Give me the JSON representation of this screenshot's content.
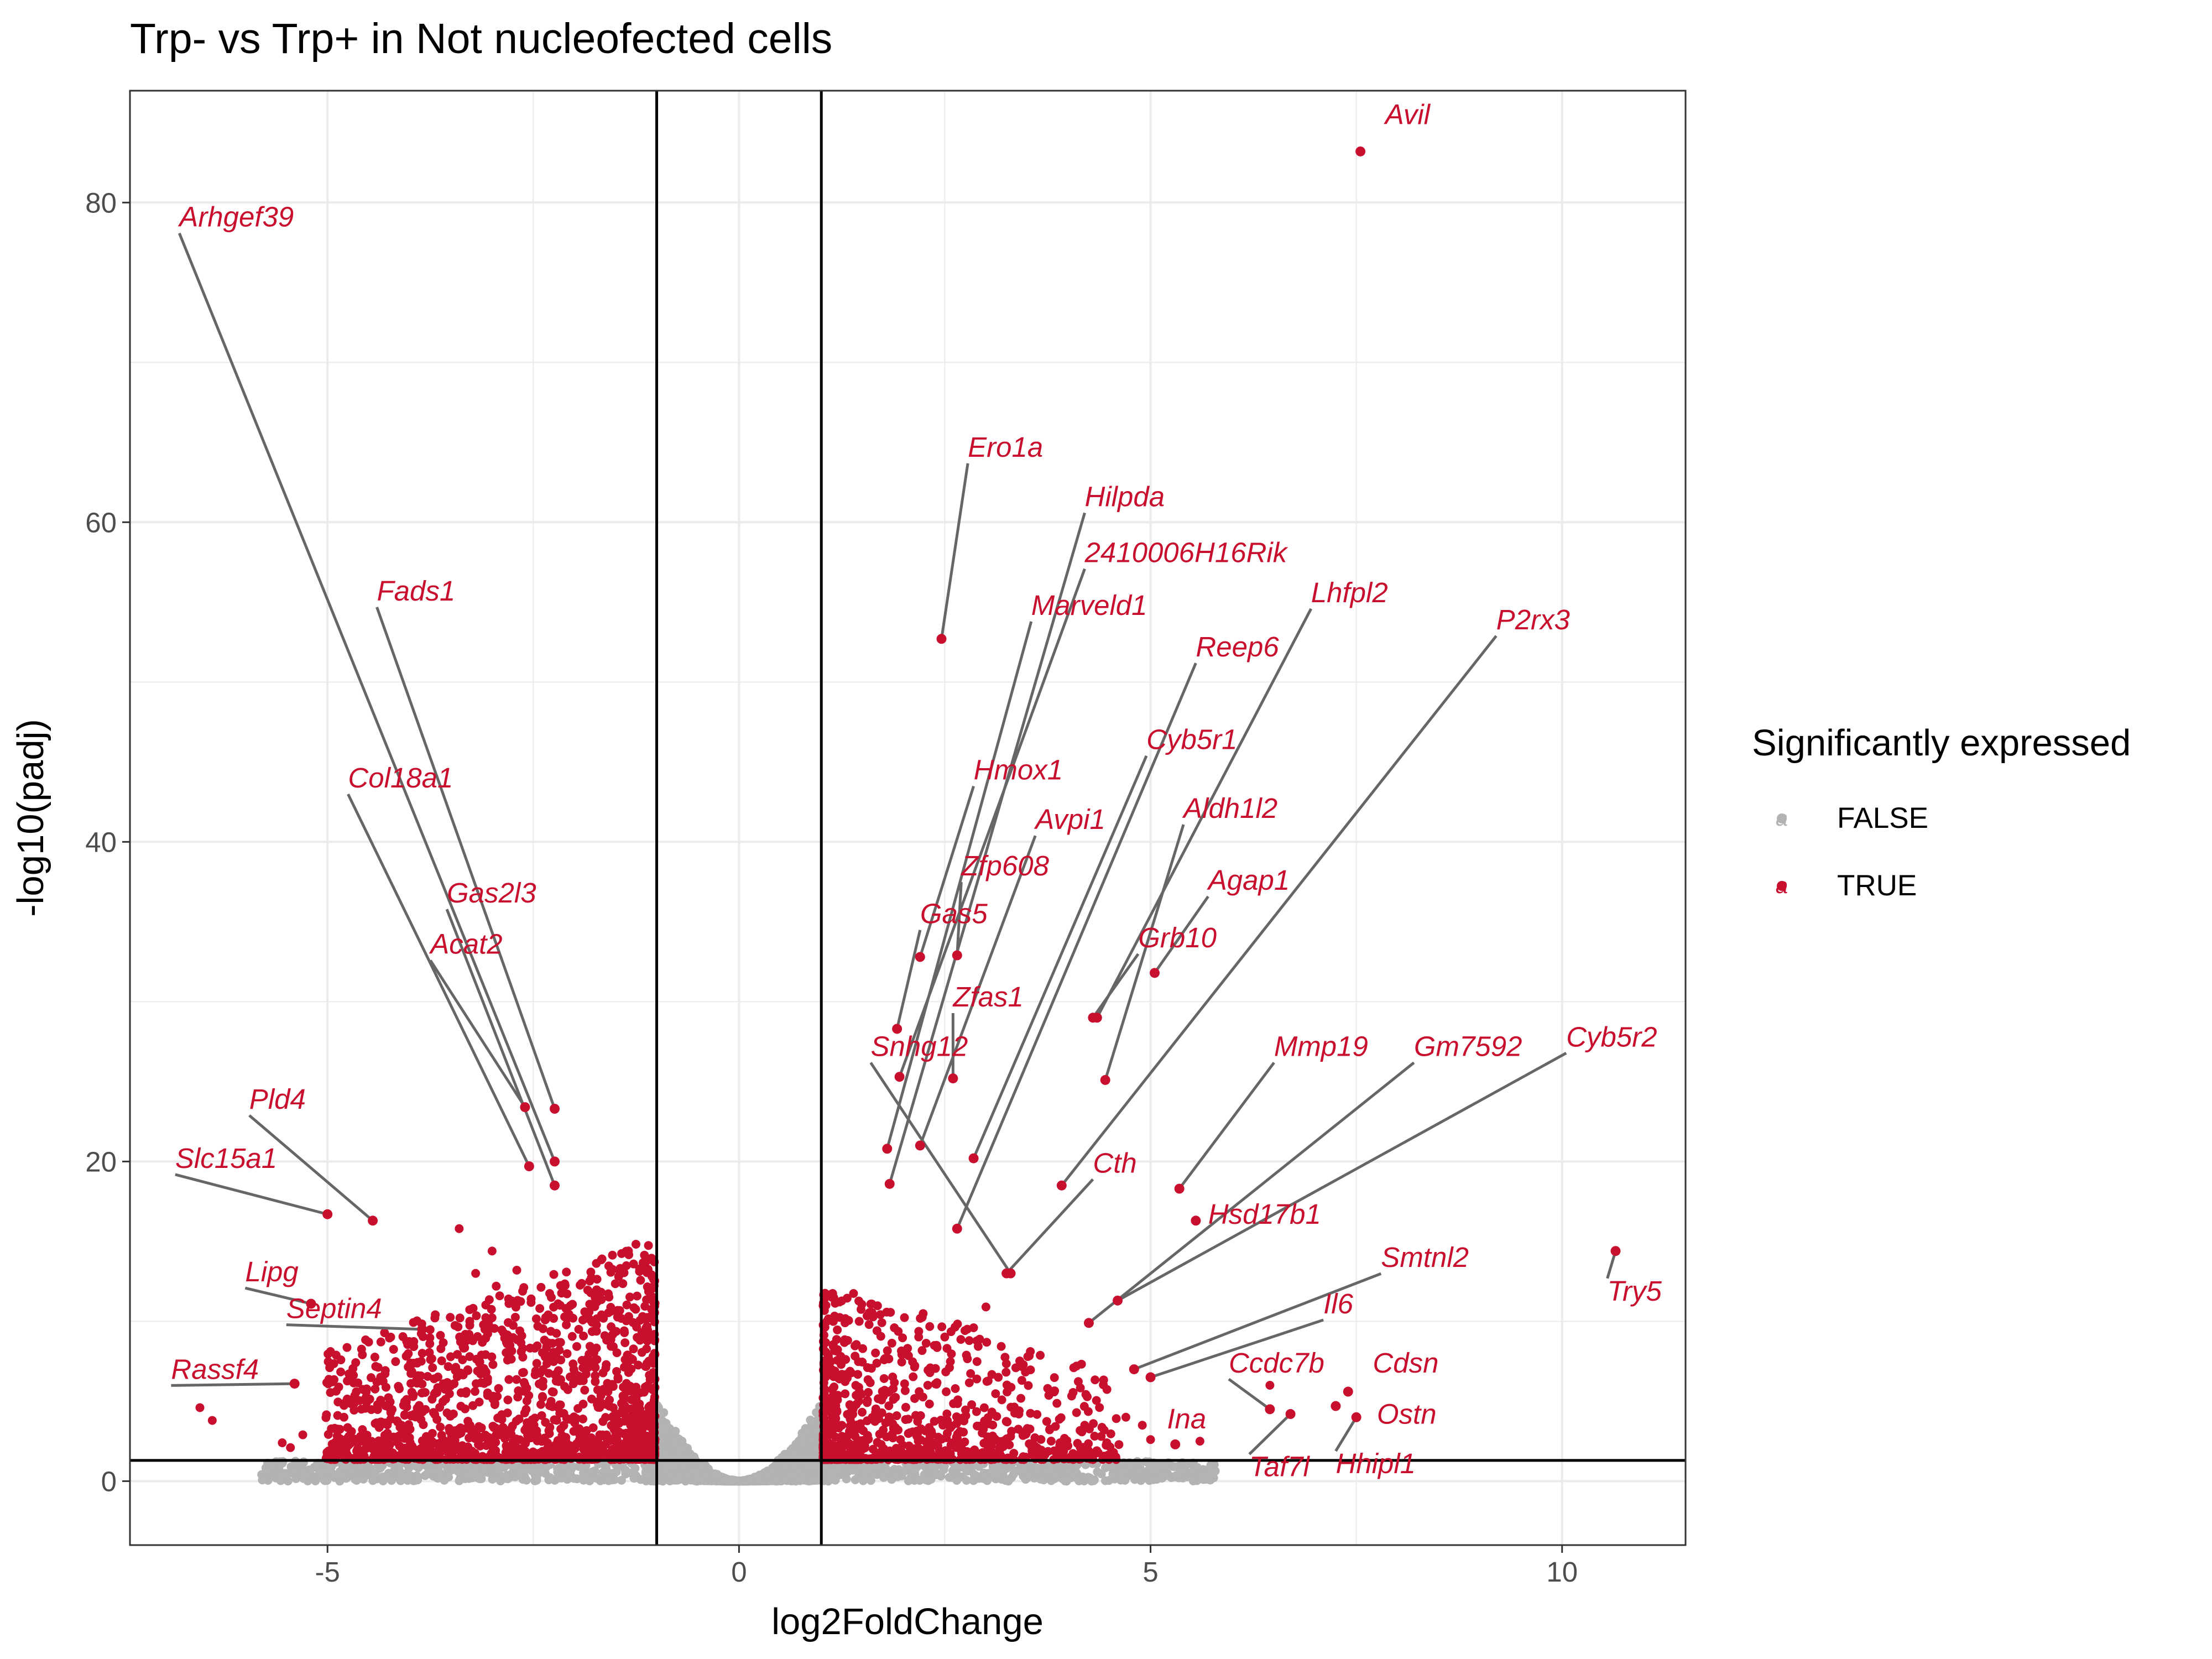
{
  "chart_data": {
    "type": "scatter",
    "title": "Trp- vs Trp+ in Not nucleofected cells",
    "xlabel": "log2FoldChange",
    "ylabel": "-log10(padj)",
    "xlim": [
      -7.4,
      11.5
    ],
    "ylim": [
      -4,
      87
    ],
    "x_ticks": [
      -5,
      0,
      5,
      10
    ],
    "y_ticks": [
      0,
      20,
      40,
      60,
      80
    ],
    "grid": true,
    "fc_threshold_lines": [
      -1,
      1
    ],
    "padj_threshold_line": 1.3,
    "legend": {
      "title": "Significantly expressed",
      "position": "right",
      "entries": [
        {
          "label": "FALSE",
          "color": "#b3b3b3",
          "glyph": "a"
        },
        {
          "label": "TRUE",
          "color": "#c8102e",
          "glyph": "a"
        }
      ]
    },
    "colors": {
      "significant": "#c8102e",
      "not_significant": "#b3b3b3",
      "connector": "#666666"
    },
    "labeled_genes": [
      {
        "gene": "Avil",
        "x": 7.55,
        "y": 83.2,
        "lx": 7.85,
        "ly": 84.9
      },
      {
        "gene": "Arhgef39",
        "x": -2.24,
        "y": 20.0,
        "lx": -6.8,
        "ly": 78.5
      },
      {
        "gene": "Fads1",
        "x": -2.24,
        "y": 23.3,
        "lx": -4.4,
        "ly": 55.1
      },
      {
        "gene": "Col18a1",
        "x": -2.55,
        "y": 19.7,
        "lx": -4.75,
        "ly": 43.4
      },
      {
        "gene": "Gas2l3",
        "x": -2.24,
        "y": 18.5,
        "lx": -3.55,
        "ly": 36.2
      },
      {
        "gene": "Acat2",
        "x": -2.6,
        "y": 23.4,
        "lx": -3.75,
        "ly": 33.0
      },
      {
        "gene": "Pld4",
        "x": -4.45,
        "y": 16.3,
        "lx": -5.95,
        "ly": 23.3
      },
      {
        "gene": "Slc15a1",
        "x": -5.0,
        "y": 16.7,
        "lx": -6.85,
        "ly": 19.6
      },
      {
        "gene": "Lipg",
        "x": -5.2,
        "y": 11.1,
        "lx": -6.0,
        "ly": 12.5
      },
      {
        "gene": "Septin4",
        "x": -3.85,
        "y": 9.5,
        "lx": -5.5,
        "ly": 10.2
      },
      {
        "gene": "Rassf4",
        "x": -5.4,
        "y": 6.1,
        "lx": -6.9,
        "ly": 6.4
      },
      {
        "gene": "Ero1a",
        "x": 2.46,
        "y": 52.7,
        "lx": 2.78,
        "ly": 64.1
      },
      {
        "gene": "Hilpda",
        "x": 1.83,
        "y": 18.6,
        "lx": 4.2,
        "ly": 61.0
      },
      {
        "gene": "2410006H16Rik",
        "x": 1.95,
        "y": 25.3,
        "lx": 4.2,
        "ly": 57.5
      },
      {
        "gene": "Lhfpl2",
        "x": 4.35,
        "y": 29.0,
        "lx": 6.95,
        "ly": 55.0
      },
      {
        "gene": "Marveld1",
        "x": 1.8,
        "y": 20.8,
        "lx": 3.55,
        "ly": 54.2
      },
      {
        "gene": "P2rx3",
        "x": 3.92,
        "y": 18.5,
        "lx": 9.2,
        "ly": 53.3
      },
      {
        "gene": "Reep6",
        "x": 2.65,
        "y": 15.8,
        "lx": 5.55,
        "ly": 51.6
      },
      {
        "gene": "Cyb5r1",
        "x": 2.85,
        "y": 20.2,
        "lx": 4.95,
        "ly": 45.8
      },
      {
        "gene": "Hmox1",
        "x": 2.2,
        "y": 32.8,
        "lx": 2.85,
        "ly": 43.9
      },
      {
        "gene": "Aldh1l2",
        "x": 4.45,
        "y": 25.1,
        "lx": 5.4,
        "ly": 41.5
      },
      {
        "gene": "Avpi1",
        "x": 2.2,
        "y": 21.0,
        "lx": 3.6,
        "ly": 40.8
      },
      {
        "gene": "Agap1",
        "x": 5.05,
        "y": 31.8,
        "lx": 5.7,
        "ly": 37.0
      },
      {
        "gene": "Zfp608",
        "x": 2.65,
        "y": 32.9,
        "lx": 2.7,
        "ly": 37.9
      },
      {
        "gene": "Gas5",
        "x": 1.92,
        "y": 28.3,
        "lx": 2.2,
        "ly": 34.9
      },
      {
        "gene": "Grb10",
        "x": 4.3,
        "y": 29.0,
        "lx": 4.85,
        "ly": 33.4
      },
      {
        "gene": "Zfas1",
        "x": 2.6,
        "y": 25.2,
        "lx": 2.6,
        "ly": 29.7
      },
      {
        "gene": "Snhg12",
        "x": 3.3,
        "y": 13.0,
        "lx": 1.6,
        "ly": 26.6
      },
      {
        "gene": "Mmp19",
        "x": 5.35,
        "y": 18.3,
        "lx": 6.5,
        "ly": 26.6
      },
      {
        "gene": "Gm7592",
        "x": 4.25,
        "y": 9.9,
        "lx": 8.2,
        "ly": 26.6
      },
      {
        "gene": "Cyb5r2",
        "x": 4.6,
        "y": 11.3,
        "lx": 10.05,
        "ly": 27.2
      },
      {
        "gene": "Cth",
        "x": 3.25,
        "y": 13.0,
        "lx": 4.3,
        "ly": 19.3
      },
      {
        "gene": "Hsd17b1",
        "x": 5.55,
        "y": 16.3,
        "lx": 5.7,
        "ly": 16.1
      },
      {
        "gene": "Smtnl2",
        "x": 4.8,
        "y": 7.0,
        "lx": 7.8,
        "ly": 13.4
      },
      {
        "gene": "Try5",
        "x": 10.65,
        "y": 14.4,
        "lx": 10.55,
        "ly": 11.3
      },
      {
        "gene": "Il6",
        "x": 5.0,
        "y": 6.5,
        "lx": 7.1,
        "ly": 10.5
      },
      {
        "gene": "Ccdc7b",
        "x": 6.45,
        "y": 4.5,
        "lx": 5.95,
        "ly": 6.8
      },
      {
        "gene": "Cdsn",
        "x": 7.4,
        "y": 5.6,
        "lx": 7.7,
        "ly": 6.8
      },
      {
        "gene": "Ina",
        "x": 5.3,
        "y": 2.3,
        "lx": 5.2,
        "ly": 3.3
      },
      {
        "gene": "Ostn",
        "x": 7.25,
        "y": 4.7,
        "lx": 7.75,
        "ly": 3.6
      },
      {
        "gene": "Taf7l",
        "x": 6.7,
        "y": 4.2,
        "lx": 6.2,
        "ly": 0.3
      },
      {
        "gene": "Hhipl1",
        "x": 7.5,
        "y": 4.0,
        "lx": 7.25,
        "ly": 0.5
      }
    ]
  }
}
